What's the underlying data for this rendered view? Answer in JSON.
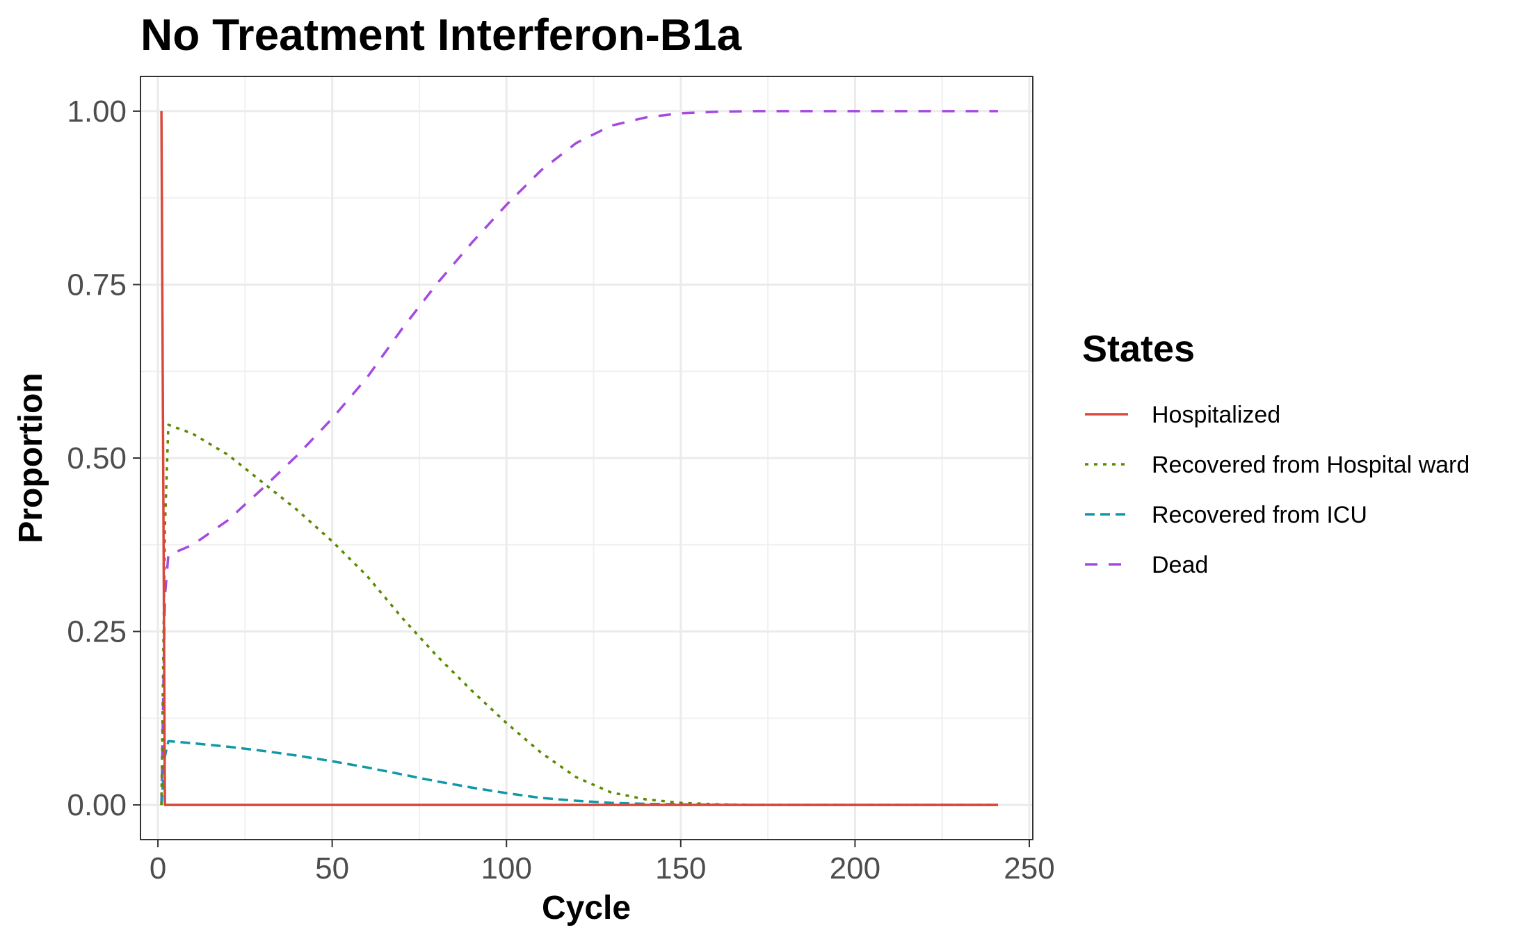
{
  "chart_data": {
    "type": "line",
    "title": "No Treatment Interferon-B1a",
    "xlabel": "Cycle",
    "ylabel": "Proportion",
    "xlim": [
      -5,
      251
    ],
    "ylim": [
      -0.05,
      1.05
    ],
    "x_ticks": [
      0,
      50,
      100,
      150,
      200,
      250
    ],
    "x_tick_labels": [
      "0",
      "50",
      "100",
      "150",
      "200",
      "250"
    ],
    "y_ticks": [
      0,
      0.25,
      0.5,
      0.75,
      1.0
    ],
    "y_tick_labels": [
      "0.00",
      "0.25",
      "0.50",
      "0.75",
      "1.00"
    ],
    "grid": true,
    "legend": {
      "title": "States",
      "position": "right"
    },
    "series": [
      {
        "name": "Hospitalized",
        "color": "#d9483b",
        "dash": "solid",
        "x": [
          1,
          2,
          3,
          50,
          100,
          150,
          200,
          241
        ],
        "y": [
          1.0,
          0.0,
          0.0,
          0.0,
          0.0,
          0.0,
          0.0,
          0.0
        ]
      },
      {
        "name": "Recovered from Hospital ward",
        "color": "#5a8a00",
        "dash": "dotted",
        "x": [
          1,
          2,
          3,
          10,
          20,
          30,
          40,
          50,
          60,
          70,
          80,
          90,
          100,
          110,
          120,
          130,
          140,
          150,
          160,
          170,
          180,
          200,
          220,
          241
        ],
        "y": [
          0.0,
          0.4,
          0.548,
          0.535,
          0.505,
          0.465,
          0.425,
          0.38,
          0.33,
          0.27,
          0.215,
          0.165,
          0.118,
          0.075,
          0.04,
          0.018,
          0.008,
          0.003,
          0.001,
          0.0,
          0.0,
          0.0,
          0.0,
          0.0
        ]
      },
      {
        "name": "Recovered from ICU",
        "color": "#0f99a8",
        "dash": "dashed-short",
        "x": [
          1,
          2,
          3,
          10,
          20,
          30,
          40,
          50,
          60,
          70,
          80,
          90,
          100,
          110,
          120,
          130,
          140,
          150,
          160,
          170,
          180,
          200,
          220,
          241
        ],
        "y": [
          0.0,
          0.07,
          0.092,
          0.089,
          0.084,
          0.078,
          0.071,
          0.063,
          0.054,
          0.044,
          0.034,
          0.025,
          0.017,
          0.01,
          0.006,
          0.003,
          0.0015,
          0.0007,
          0.0003,
          0.0,
          0.0,
          0.0,
          0.0,
          0.0
        ]
      },
      {
        "name": "Dead",
        "color": "#a54ae0",
        "dash": "dashed",
        "x": [
          1,
          2,
          3,
          10,
          20,
          30,
          40,
          50,
          60,
          70,
          80,
          90,
          100,
          110,
          120,
          130,
          140,
          150,
          160,
          170,
          180,
          200,
          220,
          241
        ],
        "y": [
          0.0,
          0.3,
          0.36,
          0.375,
          0.41,
          0.456,
          0.504,
          0.557,
          0.616,
          0.686,
          0.751,
          0.81,
          0.865,
          0.915,
          0.954,
          0.979,
          0.991,
          0.997,
          0.999,
          1.0,
          1.0,
          1.0,
          1.0,
          1.0
        ]
      }
    ]
  }
}
